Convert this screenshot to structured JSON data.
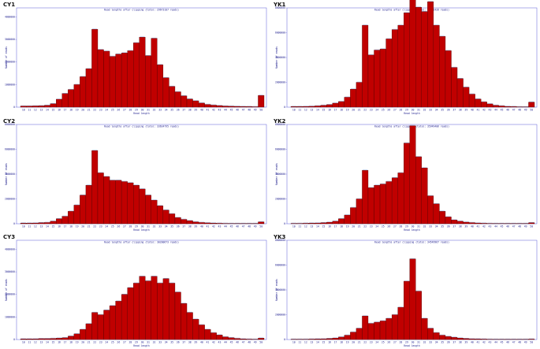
{
  "chart_data": [
    {
      "panel_label": "CY1",
      "type": "bar",
      "title": "Read lengths after clipping (total: 29673107 reads)",
      "xlabel": "Read length",
      "ylabel": "Number of reads",
      "yticks": [
        0,
        1000000,
        2000000,
        3000000,
        4000000
      ],
      "ylim": [
        0,
        4400000
      ],
      "categories": [
        "10",
        "11",
        "12",
        "13",
        "14",
        "15",
        "16",
        "17",
        "18",
        "19",
        "20",
        "21",
        "22",
        "23",
        "24",
        "25",
        "26",
        "27",
        "28",
        "29",
        "30",
        "31",
        "32",
        "33",
        "34",
        "35",
        "36",
        "37",
        "38",
        "39",
        "40",
        "41",
        "42",
        "43",
        "44",
        "45",
        "46",
        "47",
        "48",
        "49",
        "50"
      ],
      "values": [
        50000,
        50000,
        55000,
        60000,
        80000,
        150000,
        350000,
        600000,
        780000,
        1000000,
        1350000,
        1700000,
        3450000,
        2550000,
        2480000,
        2250000,
        2350000,
        2400000,
        2500000,
        2850000,
        3100000,
        2280000,
        3050000,
        1880000,
        1300000,
        920000,
        680000,
        500000,
        360000,
        280000,
        180000,
        120000,
        90000,
        70000,
        50000,
        40000,
        35000,
        30000,
        25000,
        20000,
        520000
      ],
      "grid": false
    },
    {
      "panel_label": "YK1",
      "type": "bar",
      "title": "Read lengths after clipping (total: 50282426 reads)",
      "xlabel": "Read length",
      "ylabel": "Number of reads",
      "yticks": [
        0,
        2000000,
        4000000,
        6000000,
        8000000
      ],
      "ylim": [
        0,
        8000000
      ],
      "categories": [
        "10",
        "11",
        "12",
        "13",
        "14",
        "15",
        "16",
        "17",
        "18",
        "19",
        "20",
        "21",
        "22",
        "23",
        "24",
        "25",
        "26",
        "27",
        "28",
        "29",
        "30",
        "31",
        "32",
        "33",
        "34",
        "35",
        "36",
        "37",
        "38",
        "39",
        "40",
        "41",
        "42",
        "43",
        "44",
        "45",
        "46",
        "47",
        "48",
        "49",
        "50"
      ],
      "values": [
        50000,
        50000,
        60000,
        70000,
        100000,
        150000,
        200000,
        320000,
        450000,
        800000,
        1450000,
        2000000,
        6600000,
        4200000,
        4600000,
        4680000,
        5500000,
        6250000,
        6600000,
        7600000,
        8700000,
        8050000,
        7700000,
        8500000,
        6600000,
        5700000,
        4550000,
        3200000,
        2300000,
        1600000,
        1050000,
        650000,
        420000,
        260000,
        150000,
        100000,
        60000,
        45000,
        30000,
        20000,
        400000
      ],
      "grid": false
    },
    {
      "panel_label": "CY2",
      "type": "bar",
      "title": "Read lengths after clipping (total: 33634795 reads)",
      "xlabel": "Read length",
      "ylabel": "Number of reads",
      "yticks": [
        0,
        2000000,
        4000000,
        6000000,
        8000000
      ],
      "ylim": [
        0,
        8000000
      ],
      "categories": [
        "10",
        "11",
        "12",
        "13",
        "14",
        "15",
        "16",
        "17",
        "18",
        "19",
        "20",
        "21",
        "22",
        "23",
        "24",
        "25",
        "26",
        "27",
        "28",
        "29",
        "30",
        "31",
        "32",
        "33",
        "34",
        "35",
        "36",
        "37",
        "38",
        "39",
        "40",
        "41",
        "42",
        "43",
        "44",
        "45",
        "46",
        "47",
        "48",
        "49",
        "50"
      ],
      "values": [
        50000,
        50000,
        60000,
        80000,
        100000,
        200000,
        400000,
        600000,
        1000000,
        1500000,
        2300000,
        3100000,
        5900000,
        4100000,
        3800000,
        3500000,
        3500000,
        3400000,
        3300000,
        3100000,
        2800000,
        2300000,
        1900000,
        1450000,
        1100000,
        800000,
        500000,
        350000,
        250000,
        150000,
        100000,
        70000,
        50000,
        40000,
        30000,
        25000,
        20000,
        15000,
        10000,
        10000,
        150000
      ],
      "grid": false
    },
    {
      "panel_label": "YK2",
      "type": "bar",
      "title": "Read lengths after clipping (total: 35949406 reads)",
      "xlabel": "Read length",
      "ylabel": "Number of reads",
      "yticks": [
        0,
        2000000,
        4000000,
        6000000,
        8000000
      ],
      "ylim": [
        0,
        8000000
      ],
      "categories": [
        "10",
        "11",
        "12",
        "13",
        "14",
        "15",
        "16",
        "17",
        "18",
        "19",
        "20",
        "21",
        "22",
        "23",
        "24",
        "25",
        "26",
        "27",
        "28",
        "29",
        "30",
        "31",
        "32",
        "33",
        "34",
        "35",
        "36",
        "37",
        "38",
        "39",
        "40",
        "41",
        "42",
        "43",
        "44",
        "45",
        "46",
        "47",
        "48",
        "49",
        "50"
      ],
      "values": [
        30000,
        30000,
        40000,
        50000,
        60000,
        80000,
        120000,
        200000,
        400000,
        700000,
        1300000,
        2000000,
        4300000,
        2900000,
        3100000,
        3200000,
        3400000,
        3700000,
        4100000,
        6500000,
        7900000,
        5400000,
        4500000,
        2250000,
        1600000,
        1000000,
        550000,
        300000,
        200000,
        130000,
        90000,
        60000,
        40000,
        30000,
        20000,
        15000,
        10000,
        8000,
        6000,
        5000,
        80000
      ],
      "grid": false
    },
    {
      "panel_label": "CY3",
      "type": "bar",
      "title": "Read lengths after clipping (total: 30200673 reads)",
      "xlabel": "Read length",
      "ylabel": "Number of reads",
      "yticks": [
        0,
        1000000,
        2000000,
        3000000,
        4000000
      ],
      "ylim": [
        0,
        4400000
      ],
      "categories": [
        "10",
        "11",
        "12",
        "13",
        "14",
        "15",
        "16",
        "17",
        "18",
        "19",
        "20",
        "21",
        "22",
        "23",
        "24",
        "25",
        "26",
        "27",
        "28",
        "29",
        "30",
        "31",
        "32",
        "33",
        "34",
        "35",
        "36",
        "37",
        "38",
        "39",
        "40",
        "41",
        "42",
        "43",
        "44",
        "45",
        "46",
        "47",
        "48",
        "49",
        "50"
      ],
      "values": [
        30000,
        30000,
        30000,
        40000,
        40000,
        50000,
        60000,
        80000,
        150000,
        250000,
        450000,
        700000,
        1200000,
        1100000,
        1300000,
        1500000,
        1700000,
        2000000,
        2300000,
        2500000,
        2800000,
        2600000,
        2800000,
        2500000,
        2700000,
        2500000,
        2100000,
        1600000,
        1200000,
        900000,
        650000,
        450000,
        300000,
        200000,
        120000,
        80000,
        50000,
        30000,
        20000,
        15000,
        60000
      ],
      "grid": false
    },
    {
      "panel_label": "YK3",
      "type": "bar",
      "title": "Read lengths after clipping (total: 34549967 reads)",
      "xlabel": "Read length",
      "ylabel": "Number of reads",
      "yticks": [
        0,
        2000000,
        4000000,
        6000000,
        8000000
      ],
      "ylim": [
        0,
        8000000
      ],
      "categories": [
        "10",
        "11",
        "12",
        "13",
        "14",
        "15",
        "16",
        "17",
        "18",
        "19",
        "20",
        "21",
        "22",
        "23",
        "24",
        "25",
        "26",
        "27",
        "28",
        "29",
        "30",
        "31",
        "32",
        "33",
        "34",
        "35",
        "36",
        "37",
        "38",
        "39",
        "40",
        "41",
        "42",
        "43",
        "44",
        "45",
        "46",
        "47",
        "48",
        "49",
        "50"
      ],
      "values": [
        30000,
        30000,
        30000,
        40000,
        50000,
        60000,
        80000,
        120000,
        200000,
        350000,
        600000,
        900000,
        1900000,
        1300000,
        1400000,
        1500000,
        1700000,
        2000000,
        2600000,
        4700000,
        6500000,
        3900000,
        1700000,
        900000,
        550000,
        350000,
        250000,
        180000,
        120000,
        80000,
        60000,
        50000,
        40000,
        30000,
        20000,
        15000,
        10000,
        8000,
        6000,
        5000,
        40000
      ],
      "grid": false
    }
  ]
}
